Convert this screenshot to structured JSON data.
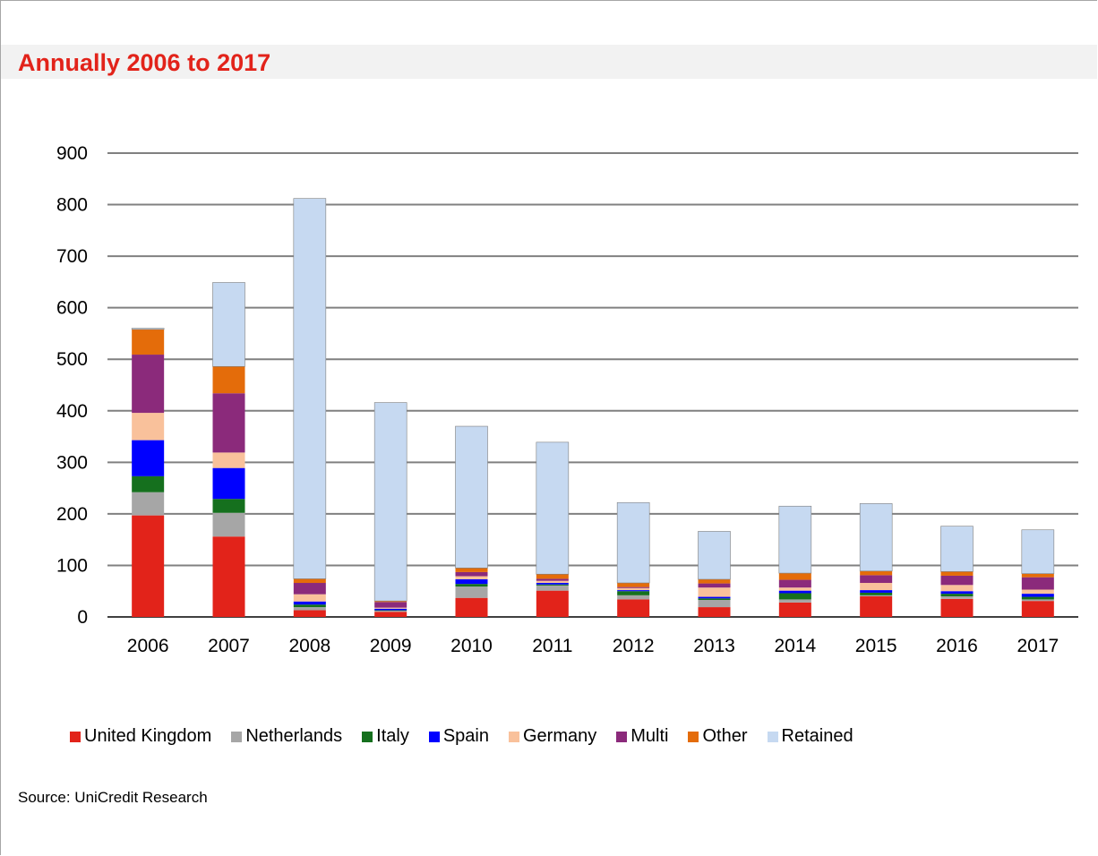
{
  "title": "Annually 2006 to 2017",
  "source": "Source: UniCredit Research",
  "chart_data": {
    "type": "bar",
    "stacked": true,
    "categories": [
      "2006",
      "2007",
      "2008",
      "2009",
      "2010",
      "2011",
      "2012",
      "2013",
      "2014",
      "2015",
      "2016",
      "2017"
    ],
    "ylim": [
      0,
      900
    ],
    "yticks": [
      0,
      100,
      200,
      300,
      400,
      500,
      600,
      700,
      800,
      900
    ],
    "ytick_labels": [
      "0",
      "100",
      "200",
      "300",
      "400",
      "500",
      "600",
      "700",
      "800",
      "900"
    ],
    "grid": true,
    "legend_position": "bottom",
    "series": [
      {
        "name": "United Kingdom",
        "color": "#e2231a",
        "values": [
          197,
          156,
          13,
          10,
          37,
          51,
          34,
          19,
          28,
          40,
          35,
          31
        ]
      },
      {
        "name": "Netherlands",
        "color": "#a6a6a6",
        "values": [
          45,
          46,
          6,
          2,
          22,
          10,
          8,
          14,
          6,
          2,
          5,
          3
        ]
      },
      {
        "name": "Italy",
        "color": "#15701e",
        "values": [
          31,
          27,
          5,
          1,
          5,
          2,
          8,
          3,
          12,
          5,
          5,
          5
        ]
      },
      {
        "name": "Spain",
        "color": "#0000ff",
        "values": [
          70,
          60,
          6,
          3,
          9,
          3,
          2,
          3,
          5,
          5,
          5,
          6
        ]
      },
      {
        "name": "Germany",
        "color": "#f9c19b",
        "values": [
          53,
          30,
          14,
          2,
          6,
          4,
          4,
          18,
          6,
          14,
          12,
          8
        ]
      },
      {
        "name": "Multi",
        "color": "#8b2a7b",
        "values": [
          113,
          115,
          22,
          11,
          8,
          4,
          2,
          8,
          15,
          15,
          18,
          24
        ]
      },
      {
        "name": "Other",
        "color": "#e46c0a",
        "values": [
          49,
          52,
          8,
          2,
          8,
          9,
          8,
          8,
          13,
          8,
          8,
          7
        ]
      },
      {
        "name": "Retained",
        "color": "#c6d9f1",
        "values": [
          2,
          163,
          738,
          385,
          275,
          256,
          156,
          93,
          130,
          131,
          88,
          85
        ]
      }
    ]
  }
}
